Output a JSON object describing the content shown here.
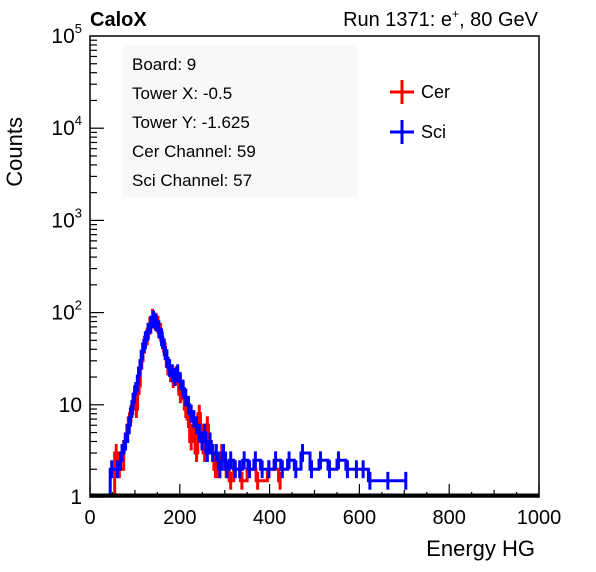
{
  "header": {
    "left_label": "CaloX",
    "right_label_prefix": "Run 1371: e",
    "right_label_sup": "+",
    "right_label_suffix": ", 80 GeV"
  },
  "info_box": {
    "lines": [
      "Board: 9",
      "Tower X: -0.5",
      "Tower Y: -1.625",
      "Cer Channel: 59",
      "Sci Channel: 57"
    ]
  },
  "chart_data": {
    "type": "line",
    "xlabel": "Energy HG",
    "ylabel": "Counts",
    "xlim": [
      0,
      1000
    ],
    "ylim": [
      1,
      100000
    ],
    "yscale": "log",
    "x_ticks": [
      0,
      200,
      400,
      600,
      800,
      1000
    ],
    "y_ticks": [
      {
        "value": 1,
        "base": "1",
        "exp": ""
      },
      {
        "value": 10,
        "base": "10",
        "exp": ""
      },
      {
        "value": 100,
        "base": "10",
        "exp": "2"
      },
      {
        "value": 1000,
        "base": "10",
        "exp": "3"
      },
      {
        "value": 10000,
        "base": "10",
        "exp": "4"
      },
      {
        "value": 100000,
        "base": "10",
        "exp": "5"
      }
    ],
    "legend_position": "top-right",
    "series": [
      {
        "name": "Cer",
        "color": "#ff0000",
        "points": [
          [
            55,
            3
          ],
          [
            62,
            2
          ],
          [
            75,
            4
          ],
          [
            82,
            6
          ],
          [
            88,
            8
          ],
          [
            95,
            11
          ],
          [
            100,
            9
          ],
          [
            106,
            16
          ],
          [
            112,
            30
          ],
          [
            118,
            45
          ],
          [
            124,
            55
          ],
          [
            130,
            72
          ],
          [
            136,
            88
          ],
          [
            142,
            80
          ],
          [
            148,
            74
          ],
          [
            154,
            62
          ],
          [
            158,
            50
          ],
          [
            164,
            38
          ],
          [
            170,
            26
          ],
          [
            176,
            22
          ],
          [
            182,
            19
          ],
          [
            188,
            21
          ],
          [
            194,
            17
          ],
          [
            198,
            13
          ],
          [
            204,
            14
          ],
          [
            210,
            9
          ],
          [
            216,
            7
          ],
          [
            222,
            4
          ],
          [
            228,
            6
          ],
          [
            234,
            3
          ],
          [
            240,
            8
          ],
          [
            246,
            5
          ],
          [
            252,
            3
          ],
          [
            258,
            6
          ],
          [
            264,
            4
          ],
          [
            270,
            3
          ],
          [
            276,
            2
          ],
          [
            282,
            2
          ],
          [
            290,
            3
          ],
          [
            300,
            2
          ],
          [
            310,
            1.5
          ],
          [
            320,
            2
          ],
          [
            335,
            1.5
          ],
          [
            350,
            2
          ],
          [
            370,
            1.5
          ],
          [
            395,
            2
          ],
          [
            420,
            1.5
          ]
        ]
      },
      {
        "name": "Sci",
        "color": "#0000ff",
        "points": [
          [
            45,
            2
          ],
          [
            58,
            2
          ],
          [
            68,
            3
          ],
          [
            76,
            4
          ],
          [
            84,
            6
          ],
          [
            90,
            9
          ],
          [
            96,
            13
          ],
          [
            102,
            17
          ],
          [
            108,
            25
          ],
          [
            114,
            38
          ],
          [
            120,
            50
          ],
          [
            126,
            62
          ],
          [
            132,
            74
          ],
          [
            138,
            84
          ],
          [
            144,
            78
          ],
          [
            150,
            66
          ],
          [
            156,
            54
          ],
          [
            162,
            42
          ],
          [
            168,
            32
          ],
          [
            174,
            25
          ],
          [
            180,
            22
          ],
          [
            186,
            20
          ],
          [
            192,
            22
          ],
          [
            198,
            18
          ],
          [
            204,
            15
          ],
          [
            210,
            12
          ],
          [
            216,
            10
          ],
          [
            222,
            8
          ],
          [
            228,
            7
          ],
          [
            234,
            6
          ],
          [
            240,
            5
          ],
          [
            246,
            4
          ],
          [
            252,
            5
          ],
          [
            258,
            3
          ],
          [
            264,
            4
          ],
          [
            270,
            3
          ],
          [
            278,
            3
          ],
          [
            286,
            2
          ],
          [
            294,
            3
          ],
          [
            302,
            2
          ],
          [
            310,
            2.5
          ],
          [
            320,
            2
          ],
          [
            330,
            2
          ],
          [
            340,
            2.5
          ],
          [
            352,
            2
          ],
          [
            365,
            2.5
          ],
          [
            380,
            2
          ],
          [
            395,
            2
          ],
          [
            410,
            2.5
          ],
          [
            425,
            2
          ],
          [
            440,
            2.5
          ],
          [
            455,
            2
          ],
          [
            470,
            3
          ],
          [
            490,
            2
          ],
          [
            510,
            2.5
          ],
          [
            530,
            2
          ],
          [
            550,
            2.5
          ],
          [
            570,
            2
          ],
          [
            590,
            2
          ],
          [
            605,
            2
          ],
          [
            620,
            1.5
          ],
          [
            660,
            1.5
          ],
          [
            700,
            1.5
          ]
        ]
      }
    ]
  }
}
